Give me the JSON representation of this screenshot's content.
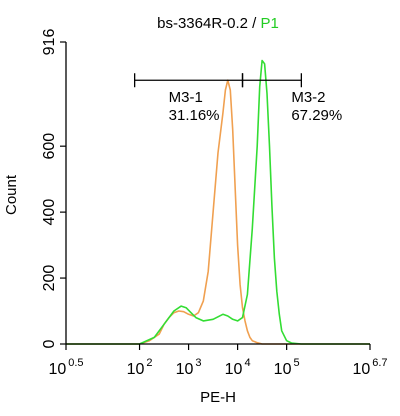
{
  "chart_data": {
    "type": "line",
    "title_parts": [
      {
        "text": "bs-3364R-0.2 / ",
        "color": "#000000"
      },
      {
        "text": "P1",
        "color": "#22cc22"
      }
    ],
    "xlabel": "PE-H",
    "ylabel": "Count",
    "x_scale": "log",
    "xlim": [
      0.5,
      6.7
    ],
    "ylim": [
      0,
      916
    ],
    "x_ticks": [
      {
        "base": "10",
        "exp": "0.5",
        "value": 0.5
      },
      {
        "base": "10",
        "exp": "2",
        "value": 2
      },
      {
        "base": "10",
        "exp": "3",
        "value": 3
      },
      {
        "base": "10",
        "exp": "4",
        "value": 4
      },
      {
        "base": "10",
        "exp": "5",
        "value": 5
      },
      {
        "base": "10",
        "exp": "6.7",
        "value": 6.7
      }
    ],
    "y_ticks": [
      {
        "label": "0",
        "value": 0
      },
      {
        "label": "200",
        "value": 200
      },
      {
        "label": "400",
        "value": 400
      },
      {
        "label": "600",
        "value": 600
      },
      {
        "label": "916",
        "value": 916
      }
    ],
    "series": [
      {
        "color": "#f0a050",
        "x": [
          0.5,
          2.0,
          2.2,
          2.4,
          2.5,
          2.6,
          2.7,
          2.8,
          2.9,
          3.0,
          3.1,
          3.2,
          3.3,
          3.4,
          3.5,
          3.6,
          3.7,
          3.75,
          3.8,
          3.85,
          3.9,
          3.95,
          4.0,
          4.05,
          4.1,
          4.15,
          4.2,
          4.25,
          4.3,
          4.4,
          4.5,
          5.0,
          6.7
        ],
        "y": [
          0,
          0,
          10,
          30,
          60,
          80,
          95,
          100,
          98,
          90,
          85,
          95,
          130,
          220,
          400,
          580,
          700,
          770,
          800,
          770,
          650,
          470,
          300,
          180,
          110,
          70,
          40,
          20,
          10,
          4,
          0,
          0,
          0
        ]
      },
      {
        "color": "#33dd33",
        "x": [
          0.5,
          2.0,
          2.3,
          2.5,
          2.7,
          2.85,
          2.95,
          3.05,
          3.15,
          3.3,
          3.5,
          3.7,
          3.8,
          3.9,
          4.0,
          4.1,
          4.2,
          4.3,
          4.4,
          4.45,
          4.5,
          4.55,
          4.6,
          4.65,
          4.7,
          4.75,
          4.8,
          4.85,
          4.9,
          5.0,
          5.1,
          5.3,
          6.7
        ],
        "y": [
          0,
          0,
          20,
          60,
          100,
          115,
          110,
          95,
          80,
          70,
          75,
          90,
          85,
          75,
          70,
          80,
          150,
          350,
          600,
          780,
          860,
          850,
          760,
          600,
          420,
          260,
          160,
          90,
          40,
          10,
          3,
          0,
          0
        ]
      }
    ],
    "gates": [
      {
        "name": "M3-1",
        "percent": "31.16%",
        "x_range": [
          1.9,
          4.1
        ],
        "y": 800
      },
      {
        "name": "M3-2",
        "percent": "67.29%",
        "x_range": [
          4.1,
          5.3
        ],
        "y": 800
      }
    ]
  }
}
